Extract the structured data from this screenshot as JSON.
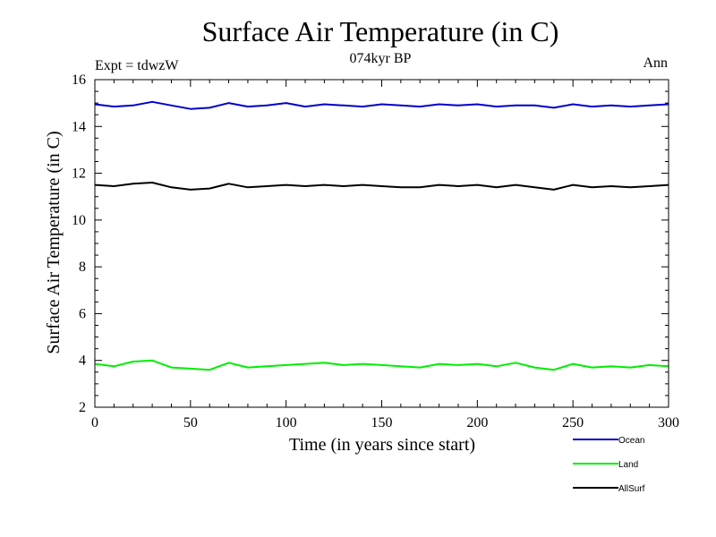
{
  "chart_data": {
    "type": "line",
    "title": "Surface Air Temperature (in C)",
    "subtitle": "074kyr BP",
    "left_note": "Expt = tdwzW",
    "right_note": "Ann",
    "xlabel": "Time (in years since start)",
    "ylabel": "Surface Air Temperature (in C)",
    "xlim": [
      0,
      300
    ],
    "ylim": [
      2,
      16
    ],
    "x_ticks": [
      0,
      50,
      100,
      150,
      200,
      250,
      300
    ],
    "y_ticks": [
      2,
      4,
      6,
      8,
      10,
      12,
      14,
      16
    ],
    "grid": false,
    "legend_position": "bottom-right",
    "x": [
      0,
      10,
      20,
      30,
      40,
      50,
      60,
      70,
      80,
      90,
      100,
      110,
      120,
      130,
      140,
      150,
      160,
      170,
      180,
      190,
      200,
      210,
      220,
      230,
      240,
      250,
      260,
      270,
      280,
      290,
      300
    ],
    "series": [
      {
        "name": "Ocean",
        "color": "#0000cc",
        "values": [
          14.95,
          14.85,
          14.9,
          15.05,
          14.9,
          14.75,
          14.8,
          15.0,
          14.85,
          14.9,
          15.0,
          14.85,
          14.95,
          14.9,
          14.85,
          14.95,
          14.9,
          14.85,
          14.95,
          14.9,
          14.95,
          14.85,
          14.9,
          14.9,
          14.8,
          14.95,
          14.85,
          14.9,
          14.85,
          14.9,
          14.95
        ]
      },
      {
        "name": "Land",
        "color": "#00ee00",
        "values": [
          3.85,
          3.75,
          3.95,
          4.0,
          3.7,
          3.65,
          3.6,
          3.9,
          3.7,
          3.75,
          3.8,
          3.85,
          3.9,
          3.8,
          3.85,
          3.8,
          3.75,
          3.7,
          3.85,
          3.8,
          3.85,
          3.75,
          3.9,
          3.7,
          3.6,
          3.85,
          3.7,
          3.75,
          3.7,
          3.8,
          3.75
        ]
      },
      {
        "name": "AllSurf",
        "color": "#000000",
        "values": [
          11.5,
          11.45,
          11.55,
          11.6,
          11.4,
          11.3,
          11.35,
          11.55,
          11.4,
          11.45,
          11.5,
          11.45,
          11.5,
          11.45,
          11.5,
          11.45,
          11.4,
          11.4,
          11.5,
          11.45,
          11.5,
          11.4,
          11.5,
          11.4,
          11.3,
          11.5,
          11.4,
          11.45,
          11.4,
          11.45,
          11.5
        ]
      }
    ]
  }
}
